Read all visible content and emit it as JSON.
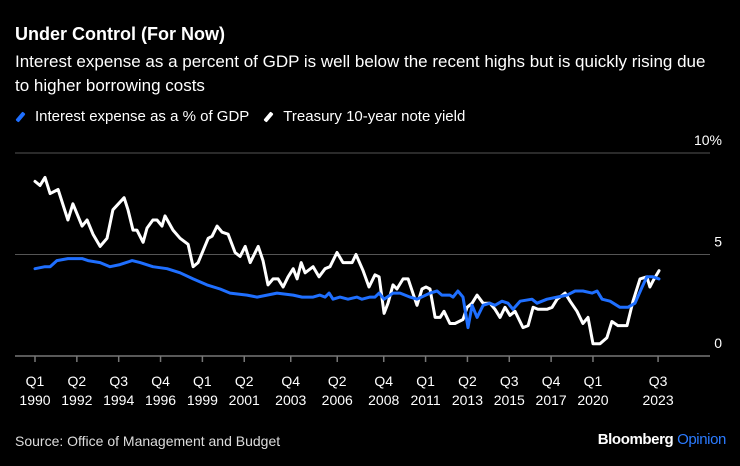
{
  "header": {
    "title": "Under Control (For Now)",
    "subtitle": "Interest expense as a percent of GDP is well below the recent highs but is quickly rising due to higher borrowing costs"
  },
  "footer": {
    "source": "Source: Office of Management and Budget",
    "logo_brand": "Bloomberg",
    "logo_section": "Opinion"
  },
  "colors": {
    "background": "#000000",
    "interest": "#1f6fff",
    "treasury": "#ffffff",
    "grid": "#555555"
  },
  "chart_data": {
    "type": "line",
    "title": "Under Control (For Now)",
    "xlabel": "",
    "ylabel": "",
    "ylim": [
      0,
      10
    ],
    "xlim": [
      1990.0,
      2023.55
    ],
    "grid": true,
    "legend_placement": "top-left",
    "y_ticks": [
      {
        "value": 0,
        "label": "0"
      },
      {
        "value": 5,
        "label": "5"
      },
      {
        "value": 10,
        "label": "10%"
      }
    ],
    "x_ticks": [
      {
        "value": 1990.0,
        "q": "Q1",
        "year": "1990"
      },
      {
        "value": 1992.25,
        "q": "Q2",
        "year": "1992"
      },
      {
        "value": 1994.5,
        "q": "Q3",
        "year": "1994"
      },
      {
        "value": 1996.75,
        "q": "Q4",
        "year": "1996"
      },
      {
        "value": 1999.0,
        "q": "Q1",
        "year": "1999"
      },
      {
        "value": 2001.25,
        "q": "Q2",
        "year": "2001"
      },
      {
        "value": 2003.75,
        "q": "Q4",
        "year": "2003"
      },
      {
        "value": 2006.25,
        "q": "Q2",
        "year": "2006"
      },
      {
        "value": 2008.75,
        "q": "Q4",
        "year": "2008"
      },
      {
        "value": 2011.0,
        "q": "Q1",
        "year": "2011"
      },
      {
        "value": 2013.25,
        "q": "Q2",
        "year": "2013"
      },
      {
        "value": 2015.5,
        "q": "Q3",
        "year": "2015"
      },
      {
        "value": 2017.75,
        "q": "Q4",
        "year": "2017"
      },
      {
        "value": 2020.0,
        "q": "Q1",
        "year": "2020"
      },
      {
        "value": 2023.5,
        "q": "Q3",
        "year": "2023"
      }
    ],
    "series": [
      {
        "name": "Interest expense as a % of GDP",
        "color": "#1f6fff",
        "points": [
          [
            1990.0,
            4.3
          ],
          [
            1990.54,
            4.4
          ],
          [
            1990.81,
            4.4
          ],
          [
            1991.18,
            4.7
          ],
          [
            1991.77,
            4.8
          ],
          [
            1992.53,
            4.8
          ],
          [
            1992.85,
            4.7
          ],
          [
            1993.5,
            4.6
          ],
          [
            1994.03,
            4.4
          ],
          [
            1994.57,
            4.5
          ],
          [
            1995.22,
            4.7
          ],
          [
            1995.65,
            4.6
          ],
          [
            1996.34,
            4.4
          ],
          [
            1997.1,
            4.3
          ],
          [
            1997.8,
            4.1
          ],
          [
            1998.5,
            3.8
          ],
          [
            1999.25,
            3.5
          ],
          [
            1999.95,
            3.3
          ],
          [
            2000.49,
            3.1
          ],
          [
            2001.4,
            3.0
          ],
          [
            2001.94,
            2.9
          ],
          [
            2002.48,
            3.0
          ],
          [
            2003.01,
            3.1
          ],
          [
            2003.88,
            3.0
          ],
          [
            2004.36,
            2.9
          ],
          [
            2004.95,
            2.9
          ],
          [
            2005.32,
            3.0
          ],
          [
            2005.6,
            2.9
          ],
          [
            2005.81,
            3.1
          ],
          [
            2006.02,
            2.8
          ],
          [
            2006.4,
            2.9
          ],
          [
            2006.83,
            2.8
          ],
          [
            2007.31,
            2.9
          ],
          [
            2007.58,
            2.8
          ],
          [
            2008.01,
            2.9
          ],
          [
            2008.28,
            2.9
          ],
          [
            2008.5,
            3.1
          ],
          [
            2008.77,
            2.8
          ],
          [
            2009.25,
            3.1
          ],
          [
            2009.63,
            3.1
          ],
          [
            2010.17,
            2.9
          ],
          [
            2010.54,
            2.8
          ],
          [
            2011.24,
            3.1
          ],
          [
            2011.62,
            3.2
          ],
          [
            2011.88,
            3.0
          ],
          [
            2012.31,
            3.0
          ],
          [
            2012.48,
            2.9
          ],
          [
            2012.74,
            3.2
          ],
          [
            2013.01,
            2.9
          ],
          [
            2013.28,
            1.4
          ],
          [
            2013.5,
            2.5
          ],
          [
            2013.77,
            1.9
          ],
          [
            2014.09,
            2.5
          ],
          [
            2014.46,
            2.6
          ],
          [
            2014.73,
            2.5
          ],
          [
            2015.11,
            2.7
          ],
          [
            2015.43,
            2.6
          ],
          [
            2015.7,
            2.3
          ],
          [
            2016.08,
            2.7
          ],
          [
            2016.72,
            2.8
          ],
          [
            2016.99,
            2.6
          ],
          [
            2017.53,
            2.8
          ],
          [
            2018.07,
            2.9
          ],
          [
            2018.61,
            3.0
          ],
          [
            2019.04,
            3.2
          ],
          [
            2019.46,
            3.2
          ],
          [
            2019.95,
            3.1
          ],
          [
            2020.22,
            3.2
          ],
          [
            2020.49,
            2.8
          ],
          [
            2020.92,
            2.7
          ],
          [
            2021.45,
            2.4
          ],
          [
            2021.88,
            2.4
          ],
          [
            2022.26,
            2.6
          ],
          [
            2022.64,
            3.4
          ],
          [
            2022.9,
            3.9
          ],
          [
            2023.23,
            3.9
          ],
          [
            2023.55,
            3.8
          ]
        ]
      },
      {
        "name": "Treasury 10-year note yield",
        "color": "#ffffff",
        "points": [
          [
            1990.0,
            8.6
          ],
          [
            1990.27,
            8.4
          ],
          [
            1990.54,
            8.8
          ],
          [
            1990.81,
            8.0
          ],
          [
            1991.24,
            8.2
          ],
          [
            1991.77,
            6.7
          ],
          [
            1992.04,
            7.5
          ],
          [
            1992.53,
            6.4
          ],
          [
            1992.8,
            6.7
          ],
          [
            1993.12,
            6.0
          ],
          [
            1993.5,
            5.4
          ],
          [
            1993.87,
            5.8
          ],
          [
            1994.19,
            7.2
          ],
          [
            1994.79,
            7.8
          ],
          [
            1995.0,
            7.2
          ],
          [
            1995.27,
            6.2
          ],
          [
            1995.48,
            6.2
          ],
          [
            1995.81,
            5.6
          ],
          [
            1996.02,
            6.3
          ],
          [
            1996.34,
            6.7
          ],
          [
            1996.56,
            6.7
          ],
          [
            1996.83,
            6.4
          ],
          [
            1996.99,
            6.9
          ],
          [
            1997.42,
            6.2
          ],
          [
            1997.8,
            5.8
          ],
          [
            1998.23,
            5.5
          ],
          [
            1998.5,
            4.4
          ],
          [
            1998.77,
            4.6
          ],
          [
            1999.31,
            5.8
          ],
          [
            1999.52,
            5.9
          ],
          [
            1999.79,
            6.4
          ],
          [
            2000.06,
            6.1
          ],
          [
            2000.38,
            6.0
          ],
          [
            2000.76,
            5.1
          ],
          [
            2001.03,
            4.9
          ],
          [
            2001.3,
            5.4
          ],
          [
            2001.57,
            4.6
          ],
          [
            2002.0,
            5.4
          ],
          [
            2002.26,
            4.7
          ],
          [
            2002.53,
            3.5
          ],
          [
            2002.8,
            3.8
          ],
          [
            2003.07,
            3.8
          ],
          [
            2003.34,
            3.4
          ],
          [
            2003.61,
            3.9
          ],
          [
            2003.88,
            4.3
          ],
          [
            2004.09,
            3.8
          ],
          [
            2004.31,
            4.6
          ],
          [
            2004.52,
            4.1
          ],
          [
            2004.95,
            4.4
          ],
          [
            2005.27,
            3.9
          ],
          [
            2005.6,
            4.3
          ],
          [
            2005.86,
            4.4
          ],
          [
            2006.24,
            5.1
          ],
          [
            2006.56,
            4.6
          ],
          [
            2007.05,
            4.6
          ],
          [
            2007.26,
            5.0
          ],
          [
            2007.64,
            4.2
          ],
          [
            2007.96,
            3.4
          ],
          [
            2008.28,
            4.0
          ],
          [
            2008.5,
            3.9
          ],
          [
            2008.77,
            2.1
          ],
          [
            2008.98,
            2.6
          ],
          [
            2009.25,
            3.5
          ],
          [
            2009.46,
            3.3
          ],
          [
            2009.79,
            3.8
          ],
          [
            2010.06,
            3.8
          ],
          [
            2010.54,
            2.5
          ],
          [
            2010.81,
            3.3
          ],
          [
            2011.02,
            3.4
          ],
          [
            2011.24,
            3.3
          ],
          [
            2011.51,
            1.9
          ],
          [
            2011.78,
            1.9
          ],
          [
            2011.99,
            2.2
          ],
          [
            2012.31,
            1.6
          ],
          [
            2012.58,
            1.6
          ],
          [
            2013.01,
            1.8
          ],
          [
            2013.23,
            2.4
          ],
          [
            2013.5,
            2.6
          ],
          [
            2013.77,
            3.0
          ],
          [
            2014.09,
            2.6
          ],
          [
            2014.46,
            2.6
          ],
          [
            2014.73,
            2.3
          ],
          [
            2015.0,
            1.9
          ],
          [
            2015.27,
            2.4
          ],
          [
            2015.54,
            2.0
          ],
          [
            2015.81,
            2.2
          ],
          [
            2016.24,
            1.4
          ],
          [
            2016.51,
            1.5
          ],
          [
            2016.78,
            2.4
          ],
          [
            2017.04,
            2.3
          ],
          [
            2017.53,
            2.3
          ],
          [
            2017.8,
            2.4
          ],
          [
            2018.07,
            2.8
          ],
          [
            2018.5,
            3.1
          ],
          [
            2018.77,
            2.7
          ],
          [
            2019.14,
            2.2
          ],
          [
            2019.46,
            1.6
          ],
          [
            2019.73,
            1.9
          ],
          [
            2020.0,
            0.6
          ],
          [
            2020.38,
            0.6
          ],
          [
            2020.75,
            0.9
          ],
          [
            2021.02,
            1.7
          ],
          [
            2021.34,
            1.5
          ],
          [
            2021.83,
            1.5
          ],
          [
            2022.15,
            2.7
          ],
          [
            2022.53,
            3.8
          ],
          [
            2022.9,
            3.9
          ],
          [
            2023.06,
            3.4
          ],
          [
            2023.23,
            3.7
          ],
          [
            2023.55,
            4.2
          ]
        ]
      }
    ]
  }
}
